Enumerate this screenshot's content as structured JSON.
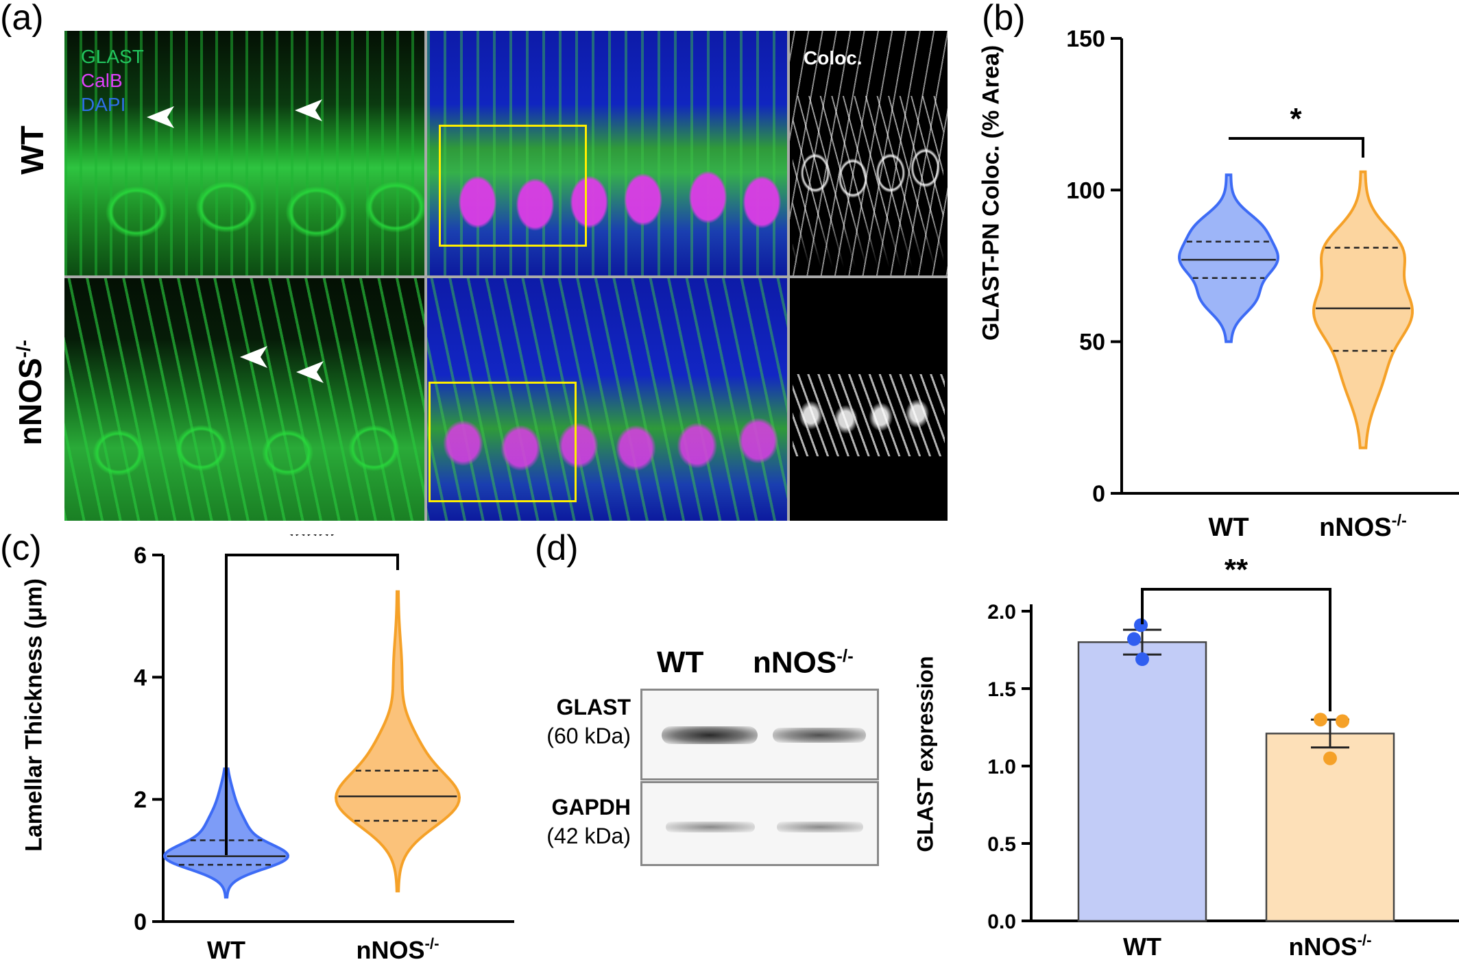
{
  "panels": {
    "a": {
      "letter": "(a)",
      "legend": [
        {
          "text": "GLAST",
          "color": "#00c853"
        },
        {
          "text": "CalB",
          "color": "#e040fb"
        },
        {
          "text": "DAPI",
          "color": "#2979ff"
        }
      ],
      "rows": [
        "WT",
        "nNOS"
      ],
      "row_sup": "-/-",
      "coloc_label": "Coloc."
    },
    "b": {
      "letter": "(b)"
    },
    "c": {
      "letter": "(c)"
    },
    "d": {
      "letter": "(d)",
      "blot": {
        "lanes": [
          "WT",
          "nNOS"
        ],
        "lane_sup": "-/-",
        "bands": [
          {
            "name": "GLAST",
            "weight": "(60 kDa)"
          },
          {
            "name": "GAPDH",
            "weight": "(42 kDa)"
          }
        ]
      }
    }
  },
  "chart_data": [
    {
      "type": "violin",
      "panel": "b",
      "ylabel": "GLAST-PN Coloc. (% Area)",
      "categories": [
        "WT",
        "nNOS-/-"
      ],
      "ylim": [
        0,
        150
      ],
      "yticks": [
        0,
        50,
        100,
        150
      ],
      "series": [
        {
          "category": "WT",
          "min": 50,
          "max": 105,
          "q1": 71,
          "median": 77,
          "q3": 83,
          "color": "#3d6bf5",
          "fill": "#9db5f8"
        },
        {
          "category": "nNOS-/-",
          "min": 15,
          "max": 106,
          "q1": 47,
          "median": 61,
          "q3": 81,
          "color": "#f5a128",
          "fill": "#fcd59f"
        }
      ],
      "significance": "*"
    },
    {
      "type": "violin",
      "panel": "c",
      "ylabel": "Lamellar Thickness (μm)",
      "categories": [
        "WT",
        "nNOS-/-"
      ],
      "ylim": [
        0,
        6
      ],
      "yticks": [
        0,
        2,
        4,
        6
      ],
      "series": [
        {
          "category": "WT",
          "min": 0.4,
          "max": 2.5,
          "q1": 0.93,
          "median": 1.07,
          "q3": 1.33,
          "color": "#3d6bf5",
          "fill": "#7d9cf7"
        },
        {
          "category": "nNOS-/-",
          "min": 0.5,
          "max": 5.4,
          "q1": 1.65,
          "median": 2.05,
          "q3": 2.47,
          "color": "#f5a128",
          "fill": "#fbc27a"
        }
      ],
      "significance": "****"
    },
    {
      "type": "bar",
      "panel": "d",
      "ylabel": "GLAST expression",
      "categories": [
        "WT",
        "nNOS-/-"
      ],
      "ylim": [
        0,
        2.0
      ],
      "yticks": [
        "0.0",
        "0.5",
        "1.0",
        "1.5",
        "2.0"
      ],
      "values": [
        1.8,
        1.21
      ],
      "errors": [
        0.08,
        0.09
      ],
      "points": [
        [
          1.91,
          1.82,
          1.69
        ],
        [
          1.3,
          1.29,
          1.05
        ]
      ],
      "colors": [
        "#c2ccf7",
        "#fde0b8"
      ],
      "point_colors": [
        "#2f5ef0",
        "#f5a128"
      ],
      "significance": "**"
    }
  ]
}
